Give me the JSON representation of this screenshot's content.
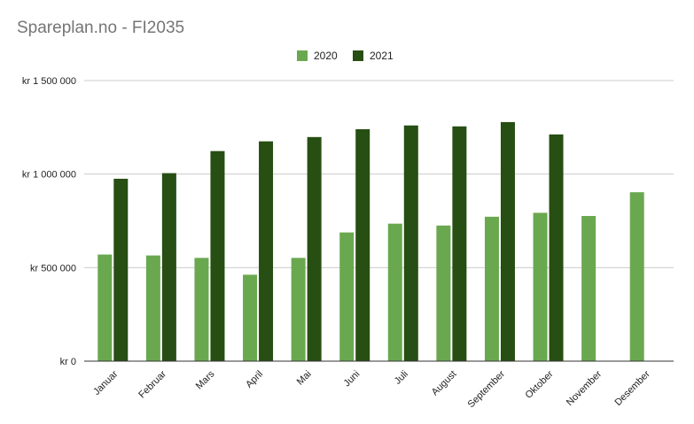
{
  "chart_data": {
    "type": "bar",
    "title": "Spareplan.no - FI2035",
    "categories": [
      "Januar",
      "Februar",
      "Mars",
      "April",
      "Mai",
      "Juni",
      "Juli",
      "August",
      "September",
      "Oktober",
      "November",
      "Desember"
    ],
    "series": [
      {
        "name": "2020",
        "color": "#6aa84f",
        "values": [
          570000,
          565000,
          552000,
          462000,
          552000,
          688000,
          735000,
          725000,
          772000,
          793000,
          776000,
          903000
        ]
      },
      {
        "name": "2021",
        "color": "#274e13",
        "values": [
          975000,
          1005000,
          1123000,
          1175000,
          1198000,
          1240000,
          1260000,
          1255000,
          1278000,
          1212000,
          null,
          null
        ]
      }
    ],
    "ylim": [
      0,
      1500000
    ],
    "y_ticks": [
      {
        "value": 0,
        "label": "kr    0"
      },
      {
        "value": 500000,
        "label": "kr  500 000"
      },
      {
        "value": 1000000,
        "label": "kr 1 000 000"
      },
      {
        "value": 1500000,
        "label": "kr 1 500 000"
      }
    ],
    "xlabel": "",
    "ylabel": "",
    "grid": true,
    "legend_position": "top"
  }
}
